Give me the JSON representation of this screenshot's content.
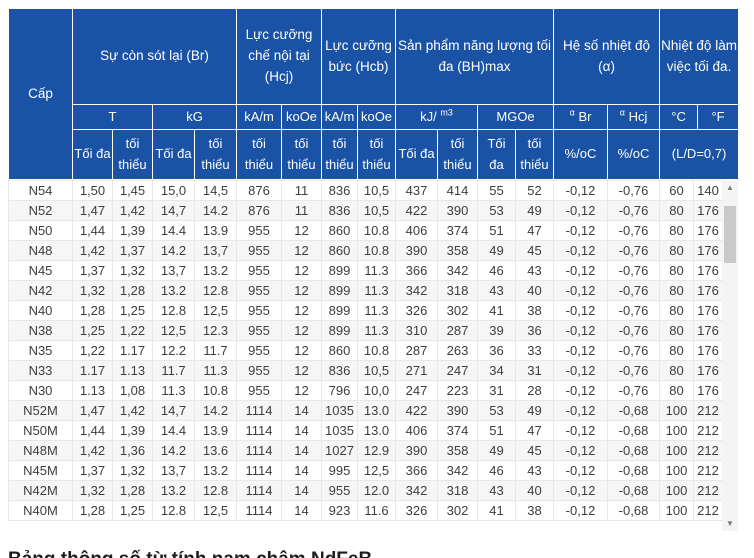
{
  "colors": {
    "header_bg": "#1a53a6",
    "header_text": "#ffffff",
    "row_stripe": "#f6f6f6",
    "body_text": "#3d3d3d",
    "scroll_thumb": "#c9c9c9"
  },
  "table": {
    "header": {
      "grade": "Cấp",
      "groups": {
        "br": "Sự còn sót lại (Br)",
        "hcj": "Lực cưỡng chế nội tại (Hcj)",
        "hcb": "Lực cưỡng bức (Hcb)",
        "bhmax": "Sản phẩm năng lượng tối đa (BH)max",
        "alpha": "Hệ số nhiệt độ (α)",
        "temp": "Nhiệt độ làm việc tối đa."
      },
      "units": {
        "t": "T",
        "kg": "kG",
        "hcj_kam": "kA/m",
        "hcj_koe": "koOe",
        "hcb_kam": "kA/m",
        "hcb_koe": "koOe",
        "kj_base": "kJ/",
        "kj_sup": "m3",
        "mgoe": "MGOe",
        "alpha_sup": "α",
        "alpha_br": "Br",
        "alpha_hcj": "Hcj",
        "deg_c": "°C",
        "deg_f": "°F"
      },
      "sub": {
        "max": "Tối đa",
        "min": "tối thiểu",
        "pct": "%/oC",
        "ld": "(L/D=0,7)"
      }
    },
    "rows": [
      {
        "grade": "N54",
        "values": [
          "1,50",
          "1,45",
          "15,0",
          "14,5",
          "876",
          "11",
          "836",
          "10,5",
          "437",
          "414",
          "55",
          "52",
          "-0,12",
          "-0,76",
          "60",
          "140"
        ]
      },
      {
        "grade": "N52",
        "values": [
          "1,47",
          "1,42",
          "14,7",
          "14.2",
          "876",
          "11",
          "836",
          "10,5",
          "422",
          "390",
          "53",
          "49",
          "-0,12",
          "-0,76",
          "80",
          "176"
        ]
      },
      {
        "grade": "N50",
        "values": [
          "1,44",
          "1,39",
          "14.4",
          "13.9",
          "955",
          "12",
          "860",
          "10.8",
          "406",
          "374",
          "51",
          "47",
          "-0,12",
          "-0,76",
          "80",
          "176"
        ]
      },
      {
        "grade": "N48",
        "values": [
          "1,42",
          "1,37",
          "14.2",
          "13,7",
          "955",
          "12",
          "860",
          "10.8",
          "390",
          "358",
          "49",
          "45",
          "-0,12",
          "-0,76",
          "80",
          "176"
        ]
      },
      {
        "grade": "N45",
        "values": [
          "1,37",
          "1,32",
          "13,7",
          "13.2",
          "955",
          "12",
          "899",
          "11.3",
          "366",
          "342",
          "46",
          "43",
          "-0,12",
          "-0,76",
          "80",
          "176"
        ]
      },
      {
        "grade": "N42",
        "values": [
          "1,32",
          "1,28",
          "13.2",
          "12.8",
          "955",
          "12",
          "899",
          "11.3",
          "342",
          "318",
          "43",
          "40",
          "-0,12",
          "-0,76",
          "80",
          "176"
        ]
      },
      {
        "grade": "N40",
        "values": [
          "1,28",
          "1,25",
          "12.8",
          "12,5",
          "955",
          "12",
          "899",
          "11.3",
          "326",
          "302",
          "41",
          "38",
          "-0,12",
          "-0,76",
          "80",
          "176"
        ]
      },
      {
        "grade": "N38",
        "values": [
          "1,25",
          "1,22",
          "12,5",
          "12.3",
          "955",
          "12",
          "899",
          "11.3",
          "310",
          "287",
          "39",
          "36",
          "-0,12",
          "-0,76",
          "80",
          "176"
        ]
      },
      {
        "grade": "N35",
        "values": [
          "1,22",
          "1.17",
          "12.2",
          "11.7",
          "955",
          "12",
          "860",
          "10.8",
          "287",
          "263",
          "36",
          "33",
          "-0,12",
          "-0,76",
          "80",
          "176"
        ]
      },
      {
        "grade": "N33",
        "values": [
          "1.17",
          "1.13",
          "11.7",
          "11.3",
          "955",
          "12",
          "836",
          "10,5",
          "271",
          "247",
          "34",
          "31",
          "-0,12",
          "-0,76",
          "80",
          "176"
        ]
      },
      {
        "grade": "N30",
        "values": [
          "1.13",
          "1,08",
          "11.3",
          "10.8",
          "955",
          "12",
          "796",
          "10,0",
          "247",
          "223",
          "31",
          "28",
          "-0,12",
          "-0,76",
          "80",
          "176"
        ]
      },
      {
        "grade": "N52M",
        "values": [
          "1,47",
          "1,42",
          "14,7",
          "14.2",
          "1114",
          "14",
          "1035",
          "13.0",
          "422",
          "390",
          "53",
          "49",
          "-0,12",
          "-0,68",
          "100",
          "212"
        ]
      },
      {
        "grade": "N50M",
        "values": [
          "1,44",
          "1,39",
          "14.4",
          "13.9",
          "1114",
          "14",
          "1035",
          "13.0",
          "406",
          "374",
          "51",
          "47",
          "-0,12",
          "-0,68",
          "100",
          "212"
        ]
      },
      {
        "grade": "N48M",
        "values": [
          "1,42",
          "1,36",
          "14.2",
          "13.6",
          "1114",
          "14",
          "1027",
          "12.9",
          "390",
          "358",
          "49",
          "45",
          "-0,12",
          "-0,68",
          "100",
          "212"
        ]
      },
      {
        "grade": "N45M",
        "values": [
          "1,37",
          "1,32",
          "13,7",
          "13.2",
          "1114",
          "14",
          "995",
          "12,5",
          "366",
          "342",
          "46",
          "43",
          "-0,12",
          "-0,68",
          "100",
          "212"
        ]
      },
      {
        "grade": "N42M",
        "values": [
          "1,32",
          "1,28",
          "13.2",
          "12.8",
          "1114",
          "14",
          "955",
          "12.0",
          "342",
          "318",
          "43",
          "40",
          "-0,12",
          "-0,68",
          "100",
          "212"
        ]
      },
      {
        "grade": "N40M",
        "values": [
          "1,28",
          "1,25",
          "12.8",
          "12,5",
          "1114",
          "14",
          "923",
          "11.6",
          "326",
          "302",
          "41",
          "38",
          "-0,12",
          "-0,68",
          "100",
          "212"
        ]
      }
    ]
  },
  "scrollbar": {
    "up_icon": "▲",
    "down_icon": "▼"
  },
  "caption": "Bảng thông số từ tính nam châm NdFeB"
}
